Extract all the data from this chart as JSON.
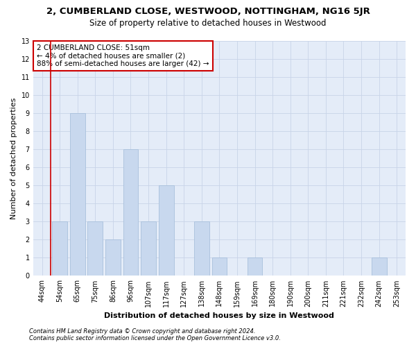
{
  "title": "2, CUMBERLAND CLOSE, WESTWOOD, NOTTINGHAM, NG16 5JR",
  "subtitle": "Size of property relative to detached houses in Westwood",
  "xlabel": "Distribution of detached houses by size in Westwood",
  "ylabel": "Number of detached properties",
  "categories": [
    "44sqm",
    "54sqm",
    "65sqm",
    "75sqm",
    "86sqm",
    "96sqm",
    "107sqm",
    "117sqm",
    "127sqm",
    "138sqm",
    "148sqm",
    "159sqm",
    "169sqm",
    "180sqm",
    "190sqm",
    "200sqm",
    "211sqm",
    "221sqm",
    "232sqm",
    "242sqm",
    "253sqm"
  ],
  "values": [
    0,
    3,
    9,
    3,
    2,
    7,
    3,
    5,
    0,
    3,
    1,
    0,
    1,
    0,
    0,
    0,
    0,
    0,
    0,
    1,
    0
  ],
  "bar_color": "#c8d8ee",
  "bar_edge_color": "#a8c0dc",
  "red_line_x": 0.5,
  "annotation_title": "2 CUMBERLAND CLOSE: 51sqm",
  "annotation_line1": "← 4% of detached houses are smaller (2)",
  "annotation_line2": "88% of semi-detached houses are larger (42) →",
  "annotation_box_facecolor": "#ffffff",
  "annotation_box_edgecolor": "#cc0000",
  "ylim_min": 0,
  "ylim_max": 13,
  "yticks": [
    0,
    1,
    2,
    3,
    4,
    5,
    6,
    7,
    8,
    9,
    10,
    11,
    12,
    13
  ],
  "grid_color": "#c8d4e8",
  "bg_color": "#e4ecf8",
  "footer_line1": "Contains HM Land Registry data © Crown copyright and database right 2024.",
  "footer_line2": "Contains public sector information licensed under the Open Government Licence v3.0.",
  "title_fontsize": 9.5,
  "subtitle_fontsize": 8.5,
  "xlabel_fontsize": 8,
  "ylabel_fontsize": 8,
  "tick_fontsize": 7,
  "annotation_fontsize": 7.5,
  "footer_fontsize": 6
}
